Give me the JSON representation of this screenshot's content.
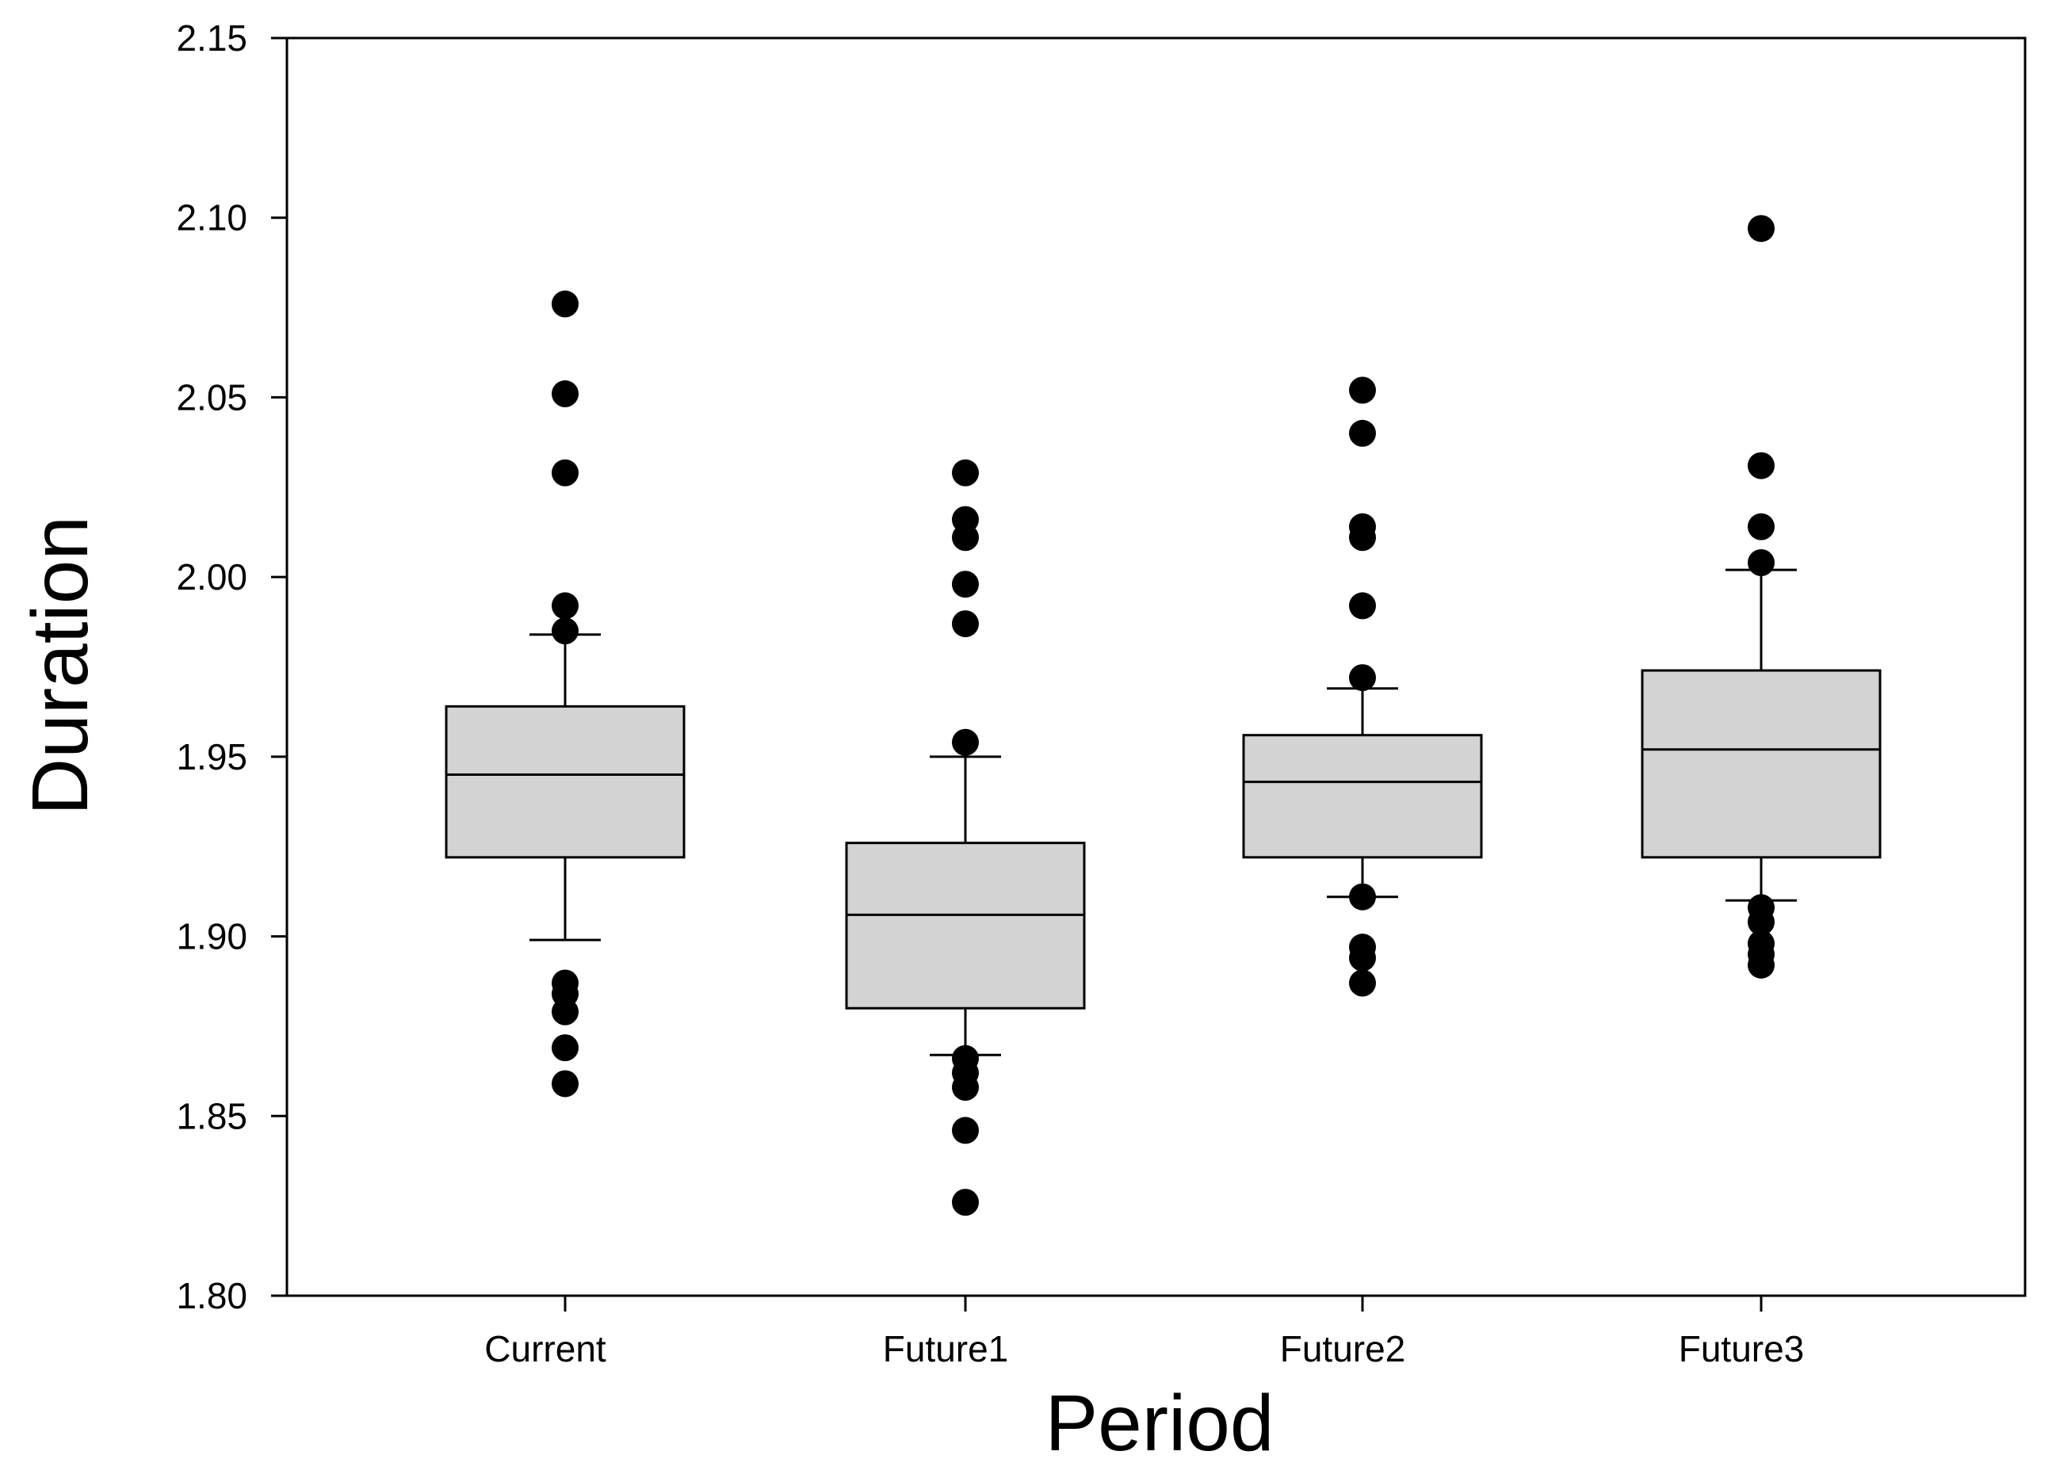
{
  "chart_data": {
    "type": "box",
    "xlabel": "Period",
    "ylabel": "Duration",
    "ylim": [
      1.8,
      2.15
    ],
    "yticks": [
      "1.80",
      "1.85",
      "1.90",
      "1.95",
      "2.00",
      "2.05",
      "2.10",
      "2.15"
    ],
    "categories": [
      "Current",
      "Future1",
      "Future2",
      "Future3"
    ],
    "series": [
      {
        "name": "Current",
        "whisker_low": 1.899,
        "q1": 1.922,
        "median": 1.945,
        "q3": 1.964,
        "whisker_high": 1.984,
        "outliers": [
          2.076,
          2.051,
          2.029,
          1.992,
          1.985,
          1.887,
          1.884,
          1.879,
          1.869,
          1.859
        ]
      },
      {
        "name": "Future1",
        "whisker_low": 1.867,
        "q1": 1.88,
        "median": 1.906,
        "q3": 1.926,
        "whisker_high": 1.95,
        "outliers": [
          2.029,
          2.016,
          2.011,
          1.998,
          1.987,
          1.954,
          1.866,
          1.862,
          1.858,
          1.846,
          1.826
        ]
      },
      {
        "name": "Future2",
        "whisker_low": 1.911,
        "q1": 1.922,
        "median": 1.943,
        "q3": 1.956,
        "whisker_high": 1.969,
        "outliers": [
          2.052,
          2.04,
          2.014,
          2.011,
          1.992,
          1.972,
          1.911,
          1.897,
          1.894,
          1.887
        ]
      },
      {
        "name": "Future3",
        "whisker_low": 1.91,
        "q1": 1.922,
        "median": 1.952,
        "q3": 1.974,
        "whisker_high": 2.002,
        "outliers": [
          2.097,
          2.031,
          2.014,
          2.004,
          1.908,
          1.904,
          1.898,
          1.895,
          1.892
        ]
      }
    ]
  }
}
